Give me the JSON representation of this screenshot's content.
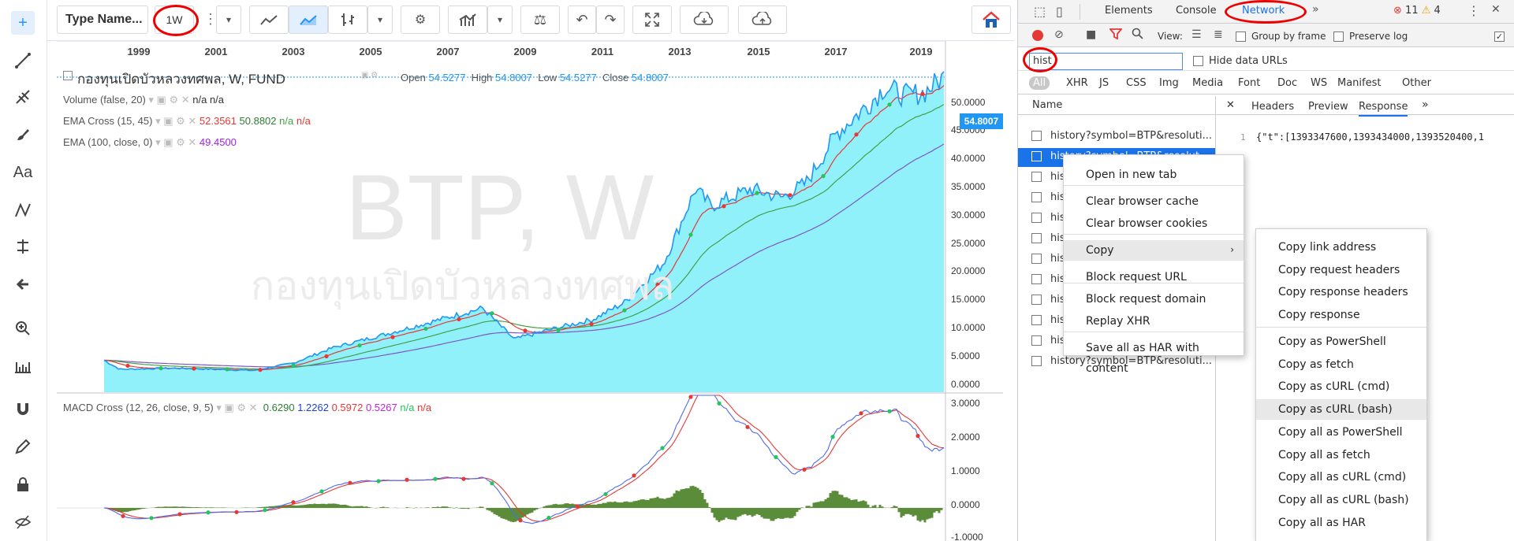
{
  "chart_header": {
    "symbol_input": "Type Name...",
    "interval": "1W"
  },
  "chart": {
    "watermark_symbol": "BTP, W",
    "watermark_name": "กองทุนเปิดบัวหลวงทศพล",
    "title": "กองทุนเปิดบัวหลวงทศพล, W, FUND",
    "ohlc": {
      "open_label": "Open",
      "open": "54.5277",
      "high_label": "High",
      "high": "54.8007",
      "low_label": "Low",
      "low": "54.5277",
      "close_label": "Close",
      "close": "54.8007"
    },
    "indicators": [
      {
        "label": "Volume (false, 20)",
        "v1": "n/a",
        "v2": "n/a",
        "v3": ""
      },
      {
        "label": "EMA Cross (15, 45)",
        "v1": "52.3561",
        "v2": "50.8802",
        "v3": "n/a",
        "v4": "n/a"
      },
      {
        "label": "EMA (100, close, 0)",
        "v1": "49.4500"
      }
    ],
    "macd": {
      "label": "MACD Cross (12, 26, close, 9, 5)",
      "v1": "0.6290",
      "v2": "1.2262",
      "v3": "0.5972",
      "v4": "0.5267",
      "v5": "n/a",
      "v6": "n/a"
    },
    "years": [
      "1999",
      "2001",
      "2003",
      "2005",
      "2007",
      "2009",
      "2011",
      "2013",
      "2015",
      "2017",
      "2019"
    ],
    "price_axis": [
      "50.0000",
      "45.0000",
      "40.0000",
      "35.0000",
      "30.0000",
      "25.0000",
      "20.0000",
      "15.0000",
      "10.0000",
      "5.0000",
      "0.0000"
    ],
    "last_price": "54.8007",
    "macd_axis": [
      "3.0000",
      "2.0000",
      "1.0000",
      "0.0000",
      "-1.0000"
    ]
  },
  "devtools": {
    "tabs": [
      "Elements",
      "Console",
      "Network"
    ],
    "errors": "11",
    "warnings": "4",
    "view_label": "View:",
    "group_by_frame": "Group by frame",
    "preserve_log": "Preserve log",
    "filter_value": "hist",
    "hide_data_urls": "Hide data URLs",
    "type_filters": [
      "All",
      "XHR",
      "JS",
      "CSS",
      "Img",
      "Media",
      "Font",
      "Doc",
      "WS",
      "Manifest",
      "Other"
    ],
    "name_header": "Name",
    "detail_tabs": [
      "Headers",
      "Preview",
      "Response"
    ],
    "response_line_no": "1",
    "response_text": "{\"t\":[1393347600,1393434000,1393520400,1",
    "rows": [
      "history?symbol=BTP&resoluti...",
      "history?symbol=BTP&resolut...",
      "hist",
      "hist",
      "hist",
      "hist",
      "hist",
      "hist",
      "hist",
      "hist",
      "hist",
      "history?symbol=BTP&resoluti..."
    ]
  },
  "context_menu": {
    "items": [
      "Open in new tab",
      "Clear browser cache",
      "Clear browser cookies",
      "Copy",
      "Block request URL",
      "Block request domain",
      "Replay XHR",
      "Save all as HAR with content"
    ]
  },
  "copy_submenu": {
    "items": [
      "Copy link address",
      "Copy request headers",
      "Copy response headers",
      "Copy response",
      "Copy as PowerShell",
      "Copy as fetch",
      "Copy as cURL (cmd)",
      "Copy as cURL (bash)",
      "Copy all as PowerShell",
      "Copy all as fetch",
      "Copy all as cURL (cmd)",
      "Copy all as cURL (bash)",
      "Copy all as HAR"
    ]
  },
  "colors": {
    "price_line": "#2196f3",
    "area": "#7eeefa",
    "ema_fast": "#e53935",
    "ema_slow": "#43a047",
    "ema100": "#7e57c2",
    "highlight": "#cfe8fc",
    "selected_row": "#1a73e8"
  }
}
